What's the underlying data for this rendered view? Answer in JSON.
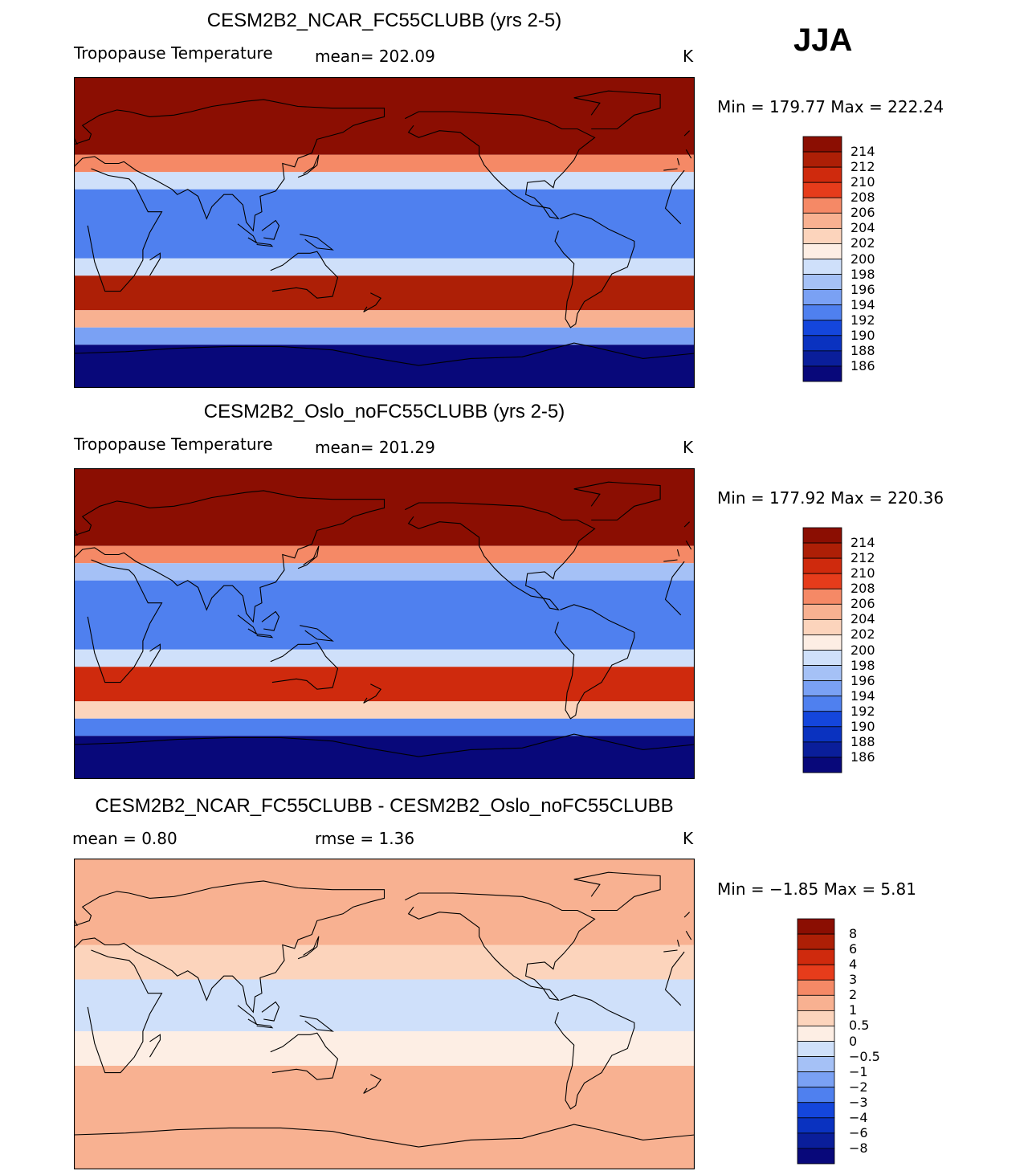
{
  "season": "JJA",
  "colors": {
    "temp_scale": [
      "#08087a",
      "#0a1e9a",
      "#0a32c0",
      "#1446dc",
      "#2c5fe6",
      "#4f80ef",
      "#7aa1f4",
      "#a5c1f6",
      "#cfe0fa",
      "#fdeee4",
      "#fcd4bc",
      "#f8b191",
      "#f58966",
      "#ef5f38",
      "#e63c1b",
      "#cf2a0d",
      "#ad1f06",
      "#8b0e02"
    ],
    "diff_scale": [
      "#08087a",
      "#0a1e9a",
      "#0a32c0",
      "#1446dc",
      "#2c5fe6",
      "#4f80ef",
      "#7aa1f4",
      "#a5c1f6",
      "#cfe0fa",
      "#fdeee4",
      "#fcd4bc",
      "#f8b191",
      "#f58966",
      "#ef5f38",
      "#e63c1b",
      "#cf2a0d",
      "#ad1f06",
      "#8b0e02"
    ]
  },
  "chart_data": [
    {
      "type": "heatmap",
      "title": "CESM2B2_NCAR_FC55CLUBB (yrs 2-5)",
      "variable": "Tropopause Temperature",
      "mean_text": "mean= 202.09",
      "units": "K",
      "minmax_text": "Min = 179.77 Max = 222.24",
      "colorbar_levels": [
        "214",
        "212",
        "210",
        "208",
        "206",
        "204",
        "202",
        "200",
        "198",
        "196",
        "194",
        "192",
        "190",
        "188",
        "186"
      ],
      "field_bands": [
        {
          "lat_from": 90,
          "lat_to": 45,
          "value": 216
        },
        {
          "lat_from": 45,
          "lat_to": 35,
          "value": 206
        },
        {
          "lat_from": 35,
          "lat_to": 25,
          "value": 198
        },
        {
          "lat_from": 25,
          "lat_to": -15,
          "value": 193
        },
        {
          "lat_from": -15,
          "lat_to": -25,
          "value": 199
        },
        {
          "lat_from": -25,
          "lat_to": -45,
          "value": 212
        },
        {
          "lat_from": -45,
          "lat_to": -55,
          "value": 204
        },
        {
          "lat_from": -55,
          "lat_to": -65,
          "value": 195
        },
        {
          "lat_from": -65,
          "lat_to": -90,
          "value": 185
        }
      ]
    },
    {
      "type": "heatmap",
      "title": "CESM2B2_Oslo_noFC55CLUBB (yrs 2-5)",
      "variable": "Tropopause Temperature",
      "mean_text": "mean= 201.29",
      "units": "K",
      "minmax_text": "Min = 177.92 Max = 220.36",
      "colorbar_levels": [
        "214",
        "212",
        "210",
        "208",
        "206",
        "204",
        "202",
        "200",
        "198",
        "196",
        "194",
        "192",
        "190",
        "188",
        "186"
      ],
      "field_bands": [
        {
          "lat_from": 90,
          "lat_to": 45,
          "value": 216
        },
        {
          "lat_from": 45,
          "lat_to": 35,
          "value": 206
        },
        {
          "lat_from": 35,
          "lat_to": 25,
          "value": 197
        },
        {
          "lat_from": 25,
          "lat_to": -15,
          "value": 192
        },
        {
          "lat_from": -15,
          "lat_to": -25,
          "value": 198
        },
        {
          "lat_from": -25,
          "lat_to": -45,
          "value": 211
        },
        {
          "lat_from": -45,
          "lat_to": -55,
          "value": 202
        },
        {
          "lat_from": -55,
          "lat_to": -65,
          "value": 193
        },
        {
          "lat_from": -65,
          "lat_to": -90,
          "value": 185
        }
      ]
    },
    {
      "type": "heatmap",
      "title": "CESM2B2_NCAR_FC55CLUBB - CESM2B2_Oslo_noFC55CLUBB",
      "mean_text": "mean =    0.80",
      "rmse_text": "rmse =    1.36",
      "units": "K",
      "minmax_text": "Min =  −1.85 Max =    5.81",
      "colorbar_levels": [
        "8",
        "6",
        "4",
        "3",
        "2",
        "1",
        "0.5",
        "0",
        "−0.5",
        "−1",
        "−2",
        "−3",
        "−4",
        "−6",
        "−8"
      ],
      "field_bands": [
        {
          "lat_from": 90,
          "lat_to": 60,
          "value": 1.5
        },
        {
          "lat_from": 60,
          "lat_to": 40,
          "value": 1.2
        },
        {
          "lat_from": 40,
          "lat_to": 20,
          "value": 0.6
        },
        {
          "lat_from": 20,
          "lat_to": -10,
          "value": -0.3
        },
        {
          "lat_from": -10,
          "lat_to": -30,
          "value": 0.4
        },
        {
          "lat_from": -30,
          "lat_to": -60,
          "value": 1.0
        },
        {
          "lat_from": -60,
          "lat_to": -90,
          "value": 1.4
        }
      ]
    }
  ]
}
